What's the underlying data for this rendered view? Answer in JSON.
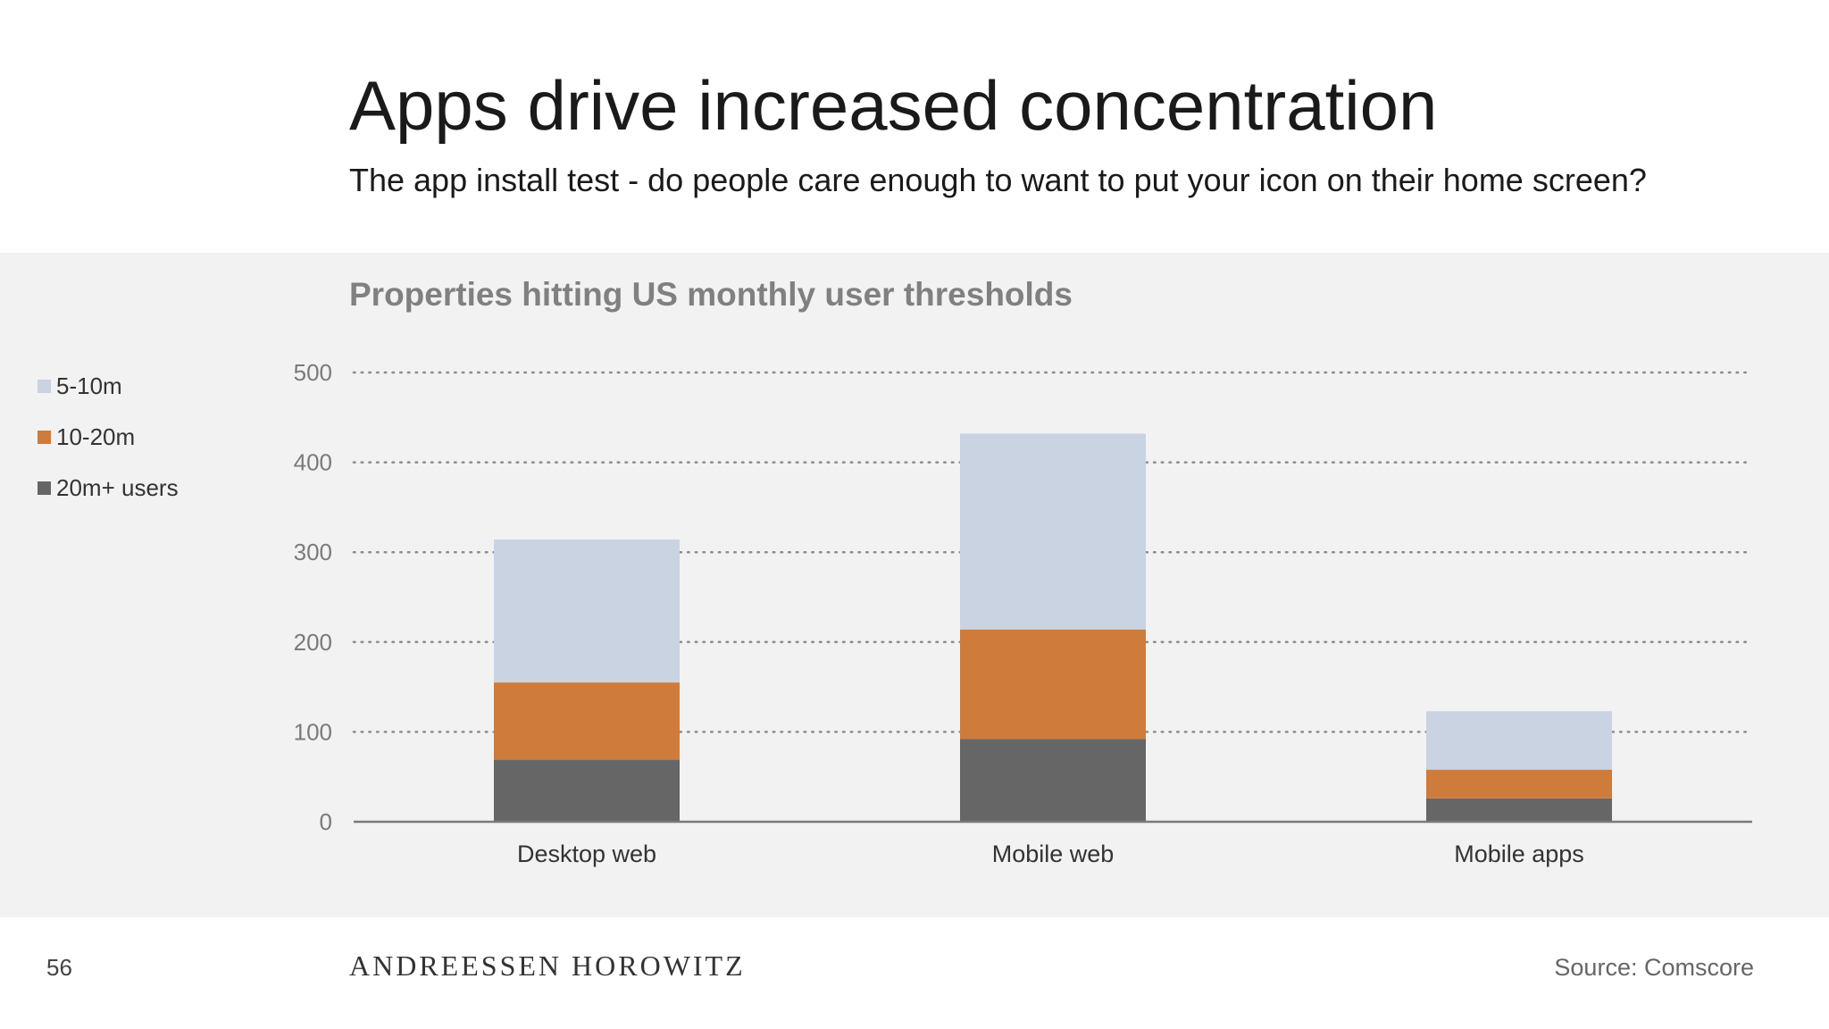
{
  "header": {
    "title": "Apps drive increased concentration",
    "subtitle": "The app install test - do people care enough to want to put your icon on their home screen?"
  },
  "footer": {
    "page_number": "56",
    "brand": "ANDREESSEN HOROWITZ",
    "source": "Source: Comscore"
  },
  "chart_data": {
    "type": "bar",
    "stacked": true,
    "title": "Properties hitting US monthly user thresholds",
    "xlabel": "",
    "ylabel": "",
    "categories": [
      "Desktop web",
      "Mobile web",
      "Mobile apps"
    ],
    "series": [
      {
        "name": "20m+ users",
        "values": [
          69,
          92,
          26
        ],
        "color": "#666666"
      },
      {
        "name": "10-20m",
        "values": [
          86,
          122,
          32
        ],
        "color": "#cf7b3b"
      },
      {
        "name": "5-10m",
        "values": [
          159,
          218,
          65
        ],
        "color": "#cad3e2"
      }
    ],
    "legend_order": [
      "5-10m",
      "10-20m",
      "20m+ users"
    ],
    "ylim": [
      0,
      500
    ],
    "yticks": [
      0,
      100,
      200,
      300,
      400,
      500
    ],
    "grid": true,
    "grid_style": "dotted",
    "legend_position": "left"
  }
}
